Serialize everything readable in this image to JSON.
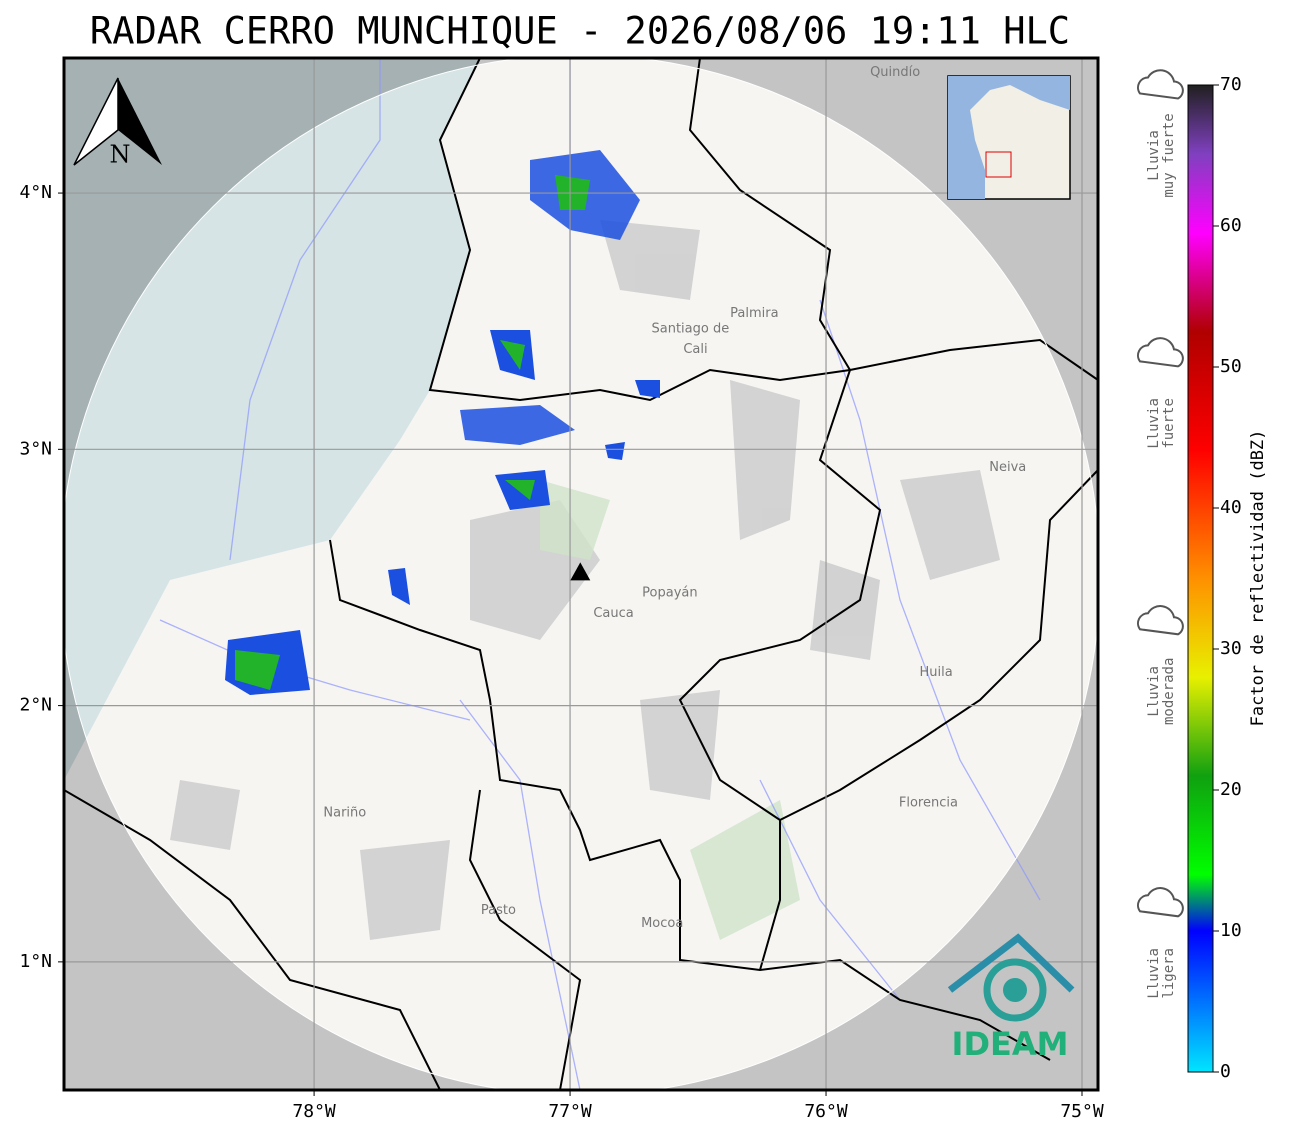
{
  "header": {
    "title": "RADAR CERRO MUNCHIQUE - 2026/08/06 19:11 HLC"
  },
  "map": {
    "xlim": [
      -78.977,
      -74.9375
    ],
    "ylim": [
      0.5,
      4.527
    ],
    "lon_ticks": [
      {
        "value": -78,
        "label": "78°W"
      },
      {
        "value": -77,
        "label": "77°W"
      },
      {
        "value": -76,
        "label": "76°W"
      },
      {
        "value": -75,
        "label": "75°W"
      }
    ],
    "lat_ticks": [
      {
        "value": 4,
        "label": "4°N"
      },
      {
        "value": 3,
        "label": "3°N"
      },
      {
        "value": 2,
        "label": "2°N"
      },
      {
        "value": 1,
        "label": "1°N"
      }
    ],
    "north_label": "N",
    "radar_site": {
      "lon": -76.96,
      "lat": 2.52
    },
    "places": [
      {
        "label": "Santiago de",
        "lon": -76.53,
        "lat": 3.47
      },
      {
        "label": "Cali",
        "lon": -76.51,
        "lat": 3.39
      },
      {
        "label": "Palmira",
        "lon": -76.28,
        "lat": 3.53
      },
      {
        "label": "Popayán",
        "lon": -76.61,
        "lat": 2.44
      },
      {
        "label": "Cauca",
        "lon": -76.83,
        "lat": 2.36
      },
      {
        "label": "Huila",
        "lon": -75.57,
        "lat": 2.13
      },
      {
        "label": "Neiva",
        "lon": -75.29,
        "lat": 2.93
      },
      {
        "label": "Nariño",
        "lon": -77.88,
        "lat": 1.58
      },
      {
        "label": "Pasto",
        "lon": -77.28,
        "lat": 1.2
      },
      {
        "label": "Mocoa",
        "lon": -76.64,
        "lat": 1.15
      },
      {
        "label": "Florencia",
        "lon": -75.6,
        "lat": 1.62
      },
      {
        "label": "Quindío",
        "lon": -75.73,
        "lat": 4.47
      }
    ],
    "logo": "IDEAM"
  },
  "colorbar": {
    "label": "Factor de reflectividad (dBZ)",
    "lim": [
      0,
      70
    ],
    "ticks": [
      0,
      10,
      20,
      30,
      40,
      50,
      60,
      70
    ],
    "legend": [
      {
        "lines": [
          "Lluvia",
          "muy fuerte"
        ],
        "value": 65
      },
      {
        "lines": [
          "Lluvia",
          "fuerte"
        ],
        "value": 46
      },
      {
        "lines": [
          "Lluvia",
          "moderada"
        ],
        "value": 27
      },
      {
        "lines": [
          "Lluvia",
          "ligera"
        ],
        "value": 7
      }
    ]
  }
}
